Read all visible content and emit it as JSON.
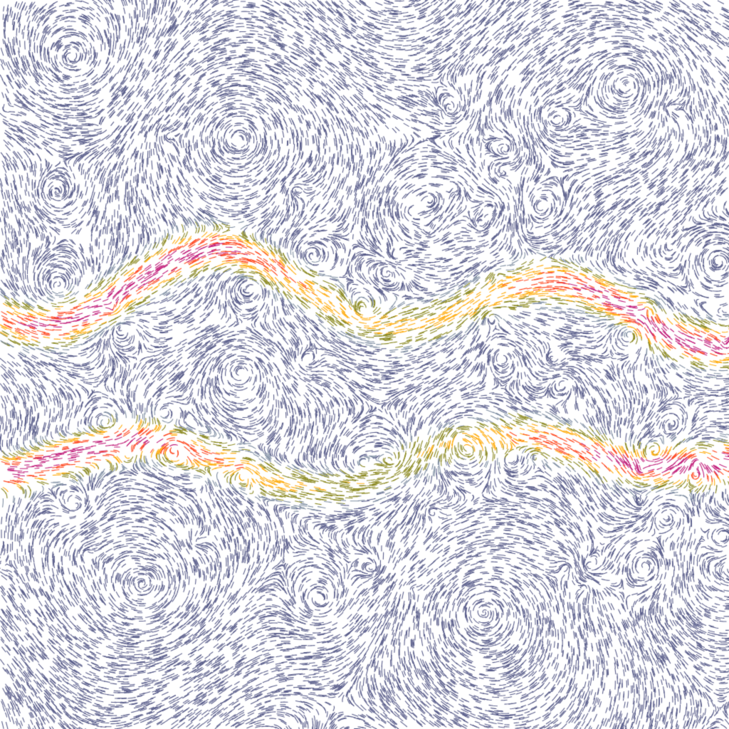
{
  "background": "#ffffff",
  "palette": {
    "slow": "#5b5f8c",
    "low": "#7f8ea3",
    "mid": "#8c8a22",
    "high": "#ffad10",
    "higher": "#ff4a22",
    "peak": "#c2207c"
  }
}
